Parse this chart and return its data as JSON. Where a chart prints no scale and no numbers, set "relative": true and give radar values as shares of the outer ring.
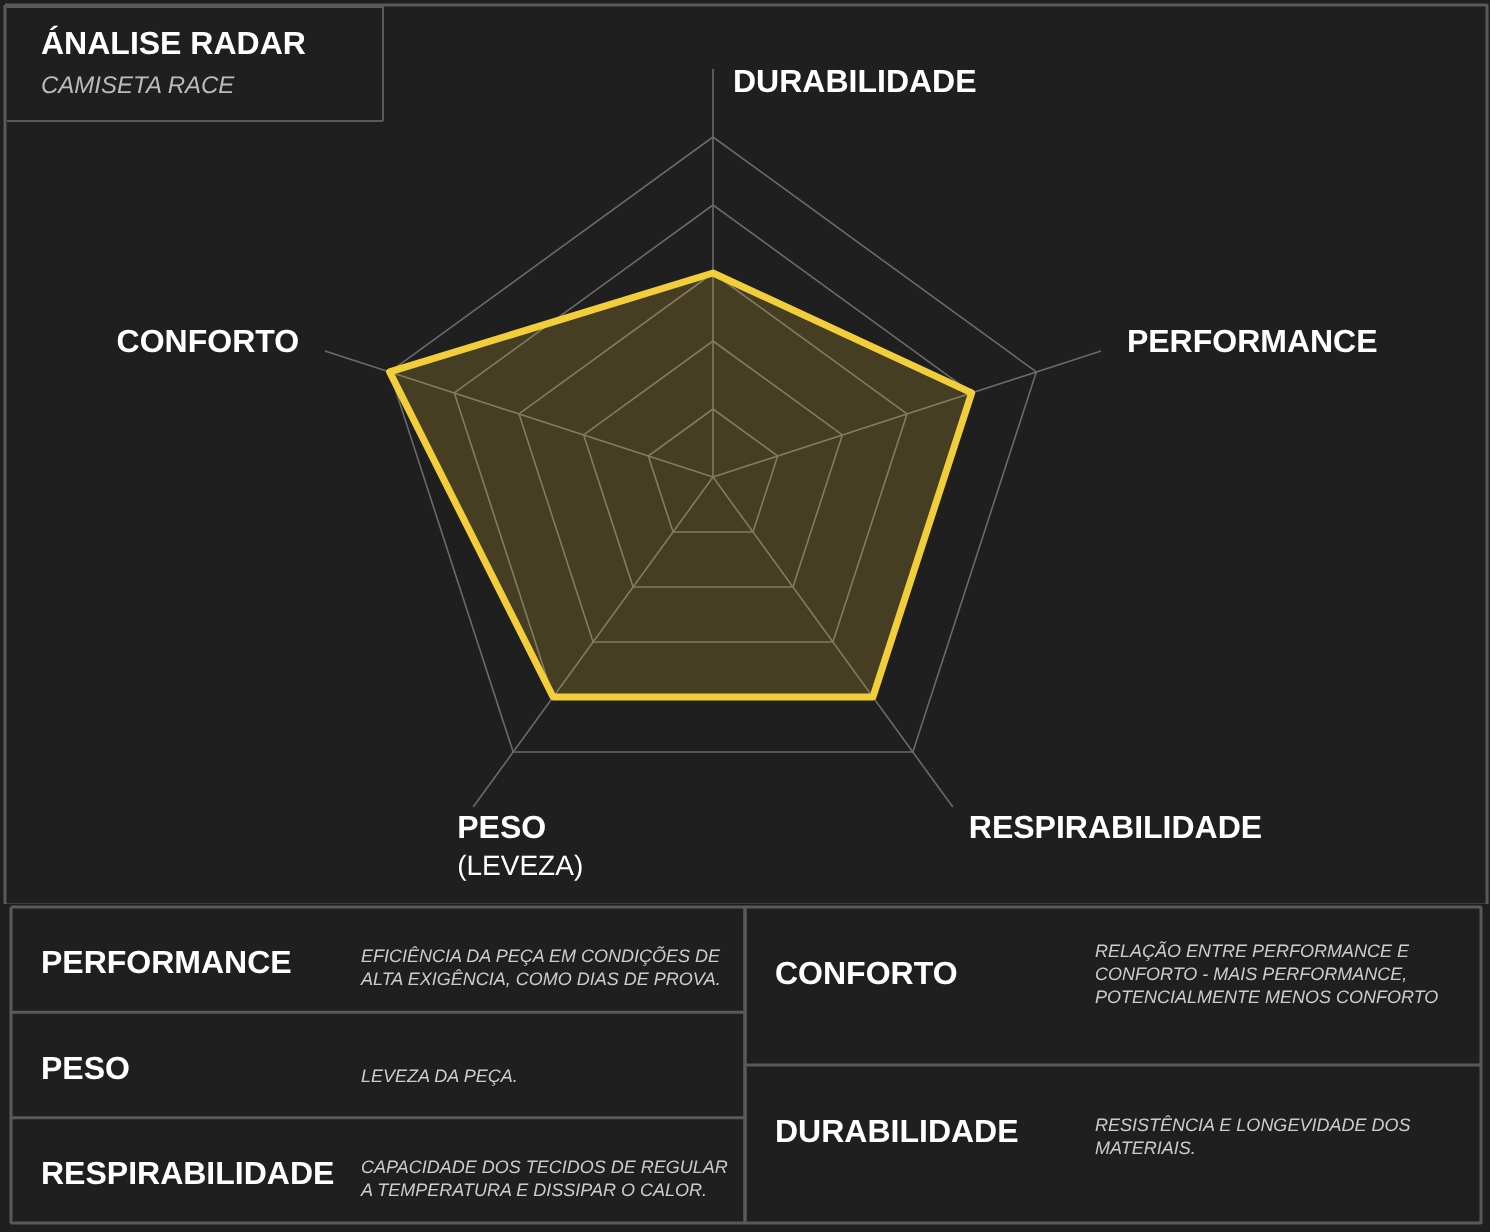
{
  "chart_data": [
    {
      "type": "radar",
      "title": "ÁNALISE RADAR",
      "subtitle": "CAMISETA RACE",
      "relative": true,
      "grid": true,
      "categories": [
        "DURABILIDADE",
        "PERFORMANCE",
        "RESPIRABILIDADE",
        "PESO\n(LEVEZA)",
        "CONFORTO"
      ],
      "series": [
        {
          "color": "#f2cf3a",
          "values": [
            0.6,
            0.8,
            0.8,
            0.8,
            1.0
          ]
        }
      ]
    },
    {
      "type": "other",
      "categories": [
        "PERFORMANCE",
        "PESO",
        "RESPIRABILIDADE",
        "CONFORTO",
        "DURABILIDADE"
      ],
      "annotations": [
        "EFICIÊNCIA DA PEÇA EM CONDIÇÕES DE\nALTA EXIGÊNCIA, COMO DIAS DE PROVA.",
        "LEVEZA DA PEÇA.",
        "CAPACIDADE DOS TECIDOS DE REGULAR\nA TEMPERATURA E DISSIPAR O CALOR.",
        "RELAÇÃO ENTRE PERFORMANCE E\nCONFORTO - MAIS PERFORMANCE,\nPOTENCIALMENTE MENOS CONFORTO",
        "RESISTÊNCIA E LONGEVIDADE DOS\nMATERIAIS."
      ]
    }
  ]
}
